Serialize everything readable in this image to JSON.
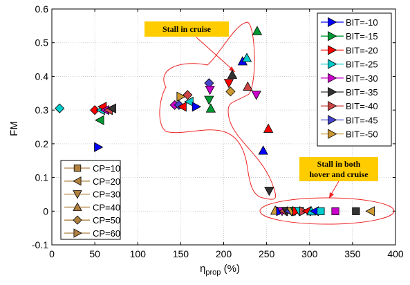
{
  "chart_data": {
    "type": "scatter",
    "xlabel_main": "η",
    "xlabel_sub": "prop",
    "xlabel_unit": " (%)",
    "ylabel": "FM",
    "xlim": [
      0,
      400
    ],
    "ylim": [
      -0.1,
      0.6
    ],
    "xticks": [
      0,
      50,
      100,
      150,
      200,
      250,
      300,
      350,
      400
    ],
    "xtick_labels": [
      "0",
      "50",
      "100",
      "150",
      "200",
      "250",
      "300",
      "350",
      "400"
    ],
    "yticks": [
      -0.1,
      0,
      0.1,
      0.2,
      0.3,
      0.4,
      0.5,
      0.6
    ],
    "ytick_labels": [
      "-0.1",
      "0",
      "0.1",
      "0.2",
      "0.3",
      "0.4",
      "0.5",
      "0.6"
    ],
    "grid": true,
    "bit_legend": {
      "placement": "top-right",
      "entries": [
        {
          "label": "BIT=-10",
          "color": "#0000ff"
        },
        {
          "label": "BIT=-15",
          "color": "#009933"
        },
        {
          "label": "BIT=-20",
          "color": "#ff0000"
        },
        {
          "label": "BIT=-25",
          "color": "#00cccc"
        },
        {
          "label": "BIT=-30",
          "color": "#cc00cc"
        },
        {
          "label": "BIT=-35",
          "color": "#333333"
        },
        {
          "label": "BIT=-40",
          "color": "#cc4444"
        },
        {
          "label": "BIT=-45",
          "color": "#4444cc"
        },
        {
          "label": "BIT=-50",
          "color": "#cc9933"
        }
      ]
    },
    "cp_legend": {
      "placement": "bottom-left",
      "color": "#b08040",
      "entries": [
        {
          "label": "CP=10",
          "marker": "square"
        },
        {
          "label": "CP=20",
          "marker": "triangle-left"
        },
        {
          "label": "CP=30",
          "marker": "triangle-down"
        },
        {
          "label": "CP=40",
          "marker": "triangle-up"
        },
        {
          "label": "CP=50",
          "marker": "diamond"
        },
        {
          "label": "CP=60",
          "marker": "triangle-right"
        }
      ]
    },
    "points": [
      {
        "x": 54,
        "y": 0.19,
        "bit": 0,
        "marker": "triangle-right"
      },
      {
        "x": 9,
        "y": 0.305,
        "bit": 3,
        "marker": "diamond"
      },
      {
        "x": 50,
        "y": 0.3,
        "bit": 2,
        "marker": "diamond"
      },
      {
        "x": 56,
        "y": 0.27,
        "bit": 1,
        "marker": "triangle-left"
      },
      {
        "x": 57,
        "y": 0.3,
        "bit": 3,
        "marker": "triangle-left"
      },
      {
        "x": 59,
        "y": 0.31,
        "bit": 2,
        "marker": "triangle-left"
      },
      {
        "x": 62,
        "y": 0.3,
        "bit": 4,
        "marker": "triangle-left"
      },
      {
        "x": 66,
        "y": 0.3,
        "bit": 6,
        "marker": "triangle-left"
      },
      {
        "x": 70,
        "y": 0.305,
        "bit": 5,
        "marker": "triangle-left"
      },
      {
        "x": 143,
        "y": 0.315,
        "bit": 4,
        "marker": "diamond"
      },
      {
        "x": 148,
        "y": 0.315,
        "bit": 7,
        "marker": "diamond"
      },
      {
        "x": 150,
        "y": 0.34,
        "bit": 8,
        "marker": "triangle-right"
      },
      {
        "x": 152,
        "y": 0.31,
        "bit": 2,
        "marker": "triangle-left"
      },
      {
        "x": 158,
        "y": 0.345,
        "bit": 6,
        "marker": "diamond"
      },
      {
        "x": 160,
        "y": 0.325,
        "bit": 3,
        "marker": "triangle-left"
      },
      {
        "x": 168,
        "y": 0.31,
        "bit": 0,
        "marker": "triangle-right"
      },
      {
        "x": 183,
        "y": 0.38,
        "bit": 7,
        "marker": "diamond"
      },
      {
        "x": 184,
        "y": 0.36,
        "bit": 4,
        "marker": "triangle-down"
      },
      {
        "x": 183,
        "y": 0.33,
        "bit": 1,
        "marker": "triangle-down"
      },
      {
        "x": 185,
        "y": 0.305,
        "bit": 1,
        "marker": "triangle-up"
      },
      {
        "x": 206,
        "y": 0.38,
        "bit": 2,
        "marker": "triangle-down"
      },
      {
        "x": 208,
        "y": 0.355,
        "bit": 8,
        "marker": "diamond"
      },
      {
        "x": 210,
        "y": 0.405,
        "bit": 5,
        "marker": "triangle-up"
      },
      {
        "x": 222,
        "y": 0.445,
        "bit": 0,
        "marker": "triangle-up"
      },
      {
        "x": 227,
        "y": 0.455,
        "bit": 3,
        "marker": "triangle-up"
      },
      {
        "x": 228,
        "y": 0.37,
        "bit": 6,
        "marker": "triangle-up"
      },
      {
        "x": 238,
        "y": 0.345,
        "bit": 4,
        "marker": "triangle-down"
      },
      {
        "x": 239,
        "y": 0.535,
        "bit": 1,
        "marker": "triangle-up"
      },
      {
        "x": 246,
        "y": 0.18,
        "bit": 0,
        "marker": "triangle-up"
      },
      {
        "x": 252,
        "y": 0.245,
        "bit": 2,
        "marker": "triangle-up"
      },
      {
        "x": 253,
        "y": 0.06,
        "bit": 5,
        "marker": "triangle-down"
      },
      {
        "x": 260,
        "y": 0.002,
        "bit": 8,
        "marker": "triangle-up"
      },
      {
        "x": 266,
        "y": 0,
        "bit": 0,
        "marker": "triangle-right"
      },
      {
        "x": 268,
        "y": 0,
        "bit": 4,
        "marker": "triangle-down"
      },
      {
        "x": 270,
        "y": 0,
        "bit": 6,
        "marker": "triangle-left"
      },
      {
        "x": 273,
        "y": 0,
        "bit": 5,
        "marker": "triangle-down"
      },
      {
        "x": 276,
        "y": 0,
        "bit": 7,
        "marker": "triangle-left"
      },
      {
        "x": 279,
        "y": 0,
        "bit": 8,
        "marker": "triangle-down"
      },
      {
        "x": 283,
        "y": 0,
        "bit": 1,
        "marker": "triangle-down"
      },
      {
        "x": 285,
        "y": 0,
        "bit": 2,
        "marker": "triangle-right"
      },
      {
        "x": 288,
        "y": 0,
        "bit": 3,
        "marker": "triangle-down"
      },
      {
        "x": 293,
        "y": 0,
        "bit": 6,
        "marker": "triangle-right"
      },
      {
        "x": 297,
        "y": 0,
        "bit": 2,
        "marker": "triangle-left"
      },
      {
        "x": 302,
        "y": 0,
        "bit": 3,
        "marker": "triangle-up"
      },
      {
        "x": 306,
        "y": 0,
        "bit": 0,
        "marker": "triangle-left"
      },
      {
        "x": 313,
        "y": 0,
        "bit": 3,
        "marker": "square"
      },
      {
        "x": 330,
        "y": 0,
        "bit": 4,
        "marker": "square"
      },
      {
        "x": 354,
        "y": 0,
        "bit": 5,
        "marker": "square"
      },
      {
        "x": 371,
        "y": 0,
        "bit": 8,
        "marker": "triangle-left"
      }
    ],
    "annotations": [
      {
        "text": "Stall in cruise",
        "box_color": "#ffcc00",
        "arrow_color": "#ff0000"
      },
      {
        "lines": [
          "Stall in both",
          "hover and cruise"
        ],
        "box_color": "#ffcc00",
        "arrow_color": "#ff0000"
      }
    ]
  }
}
